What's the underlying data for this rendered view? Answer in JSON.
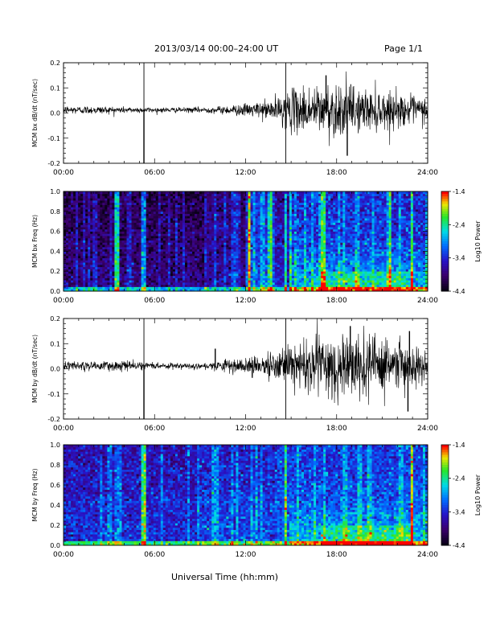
{
  "header": {
    "title": "2013/03/14  00:00–24:00 UT",
    "page": "Page 1/1"
  },
  "xlabel": "Universal Time (hh:mm)",
  "chart_data": [
    {
      "type": "line",
      "ylabel": "MCM bx dB/dt (nT/sec)",
      "xlim": [
        0,
        24
      ],
      "ylim": [
        -0.2,
        0.2
      ],
      "xticks": [
        "00:00",
        "06:00",
        "12:00",
        "18:00",
        "24:00"
      ],
      "yticks": [
        "-0.2",
        "-0.1",
        "0.0",
        "0.1",
        "0.2"
      ],
      "series": [
        {
          "envelope_x": [
            0,
            2,
            4,
            6,
            8,
            10,
            11,
            12,
            13,
            14,
            15,
            16,
            17,
            18,
            19,
            20,
            21,
            22,
            23,
            24
          ],
          "envelope_amp": [
            0.01,
            0.01,
            0.008,
            0.006,
            0.006,
            0.008,
            0.012,
            0.015,
            0.02,
            0.03,
            0.05,
            0.06,
            0.06,
            0.07,
            0.06,
            0.05,
            0.05,
            0.04,
            0.035,
            0.03
          ],
          "spikes": [
            {
              "x": 5.3,
              "y": -0.21
            },
            {
              "x": 14.65,
              "y": 0.0
            },
            {
              "x": 17.3,
              "y": 0.15
            },
            {
              "x": 18.7,
              "y": -0.17
            }
          ]
        }
      ],
      "markers_x": [
        5.3,
        14.65
      ]
    },
    {
      "type": "heatmap",
      "ylabel": "MCM bx Freq (Hz)",
      "xlim": [
        0,
        24
      ],
      "ylim": [
        0,
        1.0
      ],
      "xticks": [
        "00:00",
        "06:00",
        "12:00",
        "18:00",
        "24:00"
      ],
      "yticks": [
        "0.0",
        "0.2",
        "0.4",
        "0.6",
        "0.8",
        "1.0"
      ],
      "colorbar": {
        "label": "Log10 Power",
        "ticks": [
          "-1.4",
          "-2.4",
          "-3.4",
          "-4.4"
        ],
        "range": [
          -4.4,
          -1.4
        ]
      },
      "bright_bands_x": [
        3.5,
        5.3,
        12.2,
        13.6,
        14.65,
        15.0,
        17.1,
        21.5,
        22.9
      ]
    },
    {
      "type": "line",
      "ylabel": "MCM by dB/dt (nT/sec)",
      "xlim": [
        0,
        24
      ],
      "ylim": [
        -0.2,
        0.2
      ],
      "xticks": [
        "00:00",
        "06:00",
        "12:00",
        "18:00",
        "24:00"
      ],
      "yticks": [
        "-0.2",
        "-0.1",
        "0.0",
        "0.1",
        "0.2"
      ],
      "series": [
        {
          "envelope_x": [
            0,
            2,
            4,
            6,
            8,
            10,
            11,
            12,
            13,
            14,
            15,
            16,
            17,
            18,
            19,
            20,
            21,
            22,
            23,
            24
          ],
          "envelope_amp": [
            0.012,
            0.012,
            0.012,
            0.007,
            0.007,
            0.01,
            0.015,
            0.02,
            0.025,
            0.035,
            0.05,
            0.07,
            0.08,
            0.085,
            0.08,
            0.07,
            0.065,
            0.06,
            0.05,
            0.04
          ],
          "spikes": [
            {
              "x": 5.3,
              "y": -0.21
            },
            {
              "x": 10.0,
              "y": 0.08
            },
            {
              "x": 14.65,
              "y": 0.0
            },
            {
              "x": 18.9,
              "y": 0.17
            },
            {
              "x": 22.8,
              "y": 0.15
            },
            {
              "x": 22.7,
              "y": -0.17
            }
          ]
        }
      ],
      "markers_x": [
        5.3,
        14.65
      ]
    },
    {
      "type": "heatmap",
      "ylabel": "MCM by Freq (Hz)",
      "xlim": [
        0,
        24
      ],
      "ylim": [
        0,
        1.0
      ],
      "xticks": [
        "00:00",
        "06:00",
        "12:00",
        "18:00",
        "24:00"
      ],
      "yticks": [
        "0.0",
        "0.2",
        "0.4",
        "0.6",
        "0.8",
        "1.0"
      ],
      "colorbar": {
        "label": "Log10 Power",
        "ticks": [
          "-1.4",
          "-2.4",
          "-3.4",
          "-4.4"
        ],
        "range": [
          -4.4,
          -1.4
        ]
      },
      "bright_bands_x": [
        5.3,
        14.65,
        23.0
      ]
    }
  ]
}
